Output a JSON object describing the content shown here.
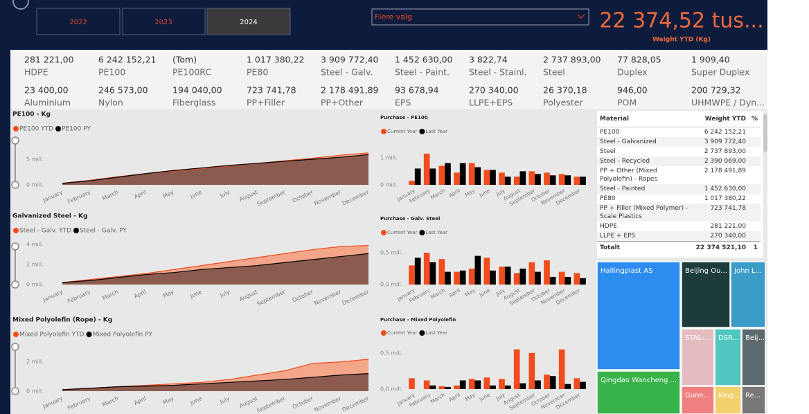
{
  "header": {
    "years": [
      "2022",
      "2023",
      "2024"
    ],
    "dropdown": "Flere valg",
    "kpi": {
      "value": "22 374,52 tus...",
      "label": "Weight YTD (Kg)"
    }
  },
  "cards": [
    {
      "value": "281 221,00",
      "label": "HDPE"
    },
    {
      "value": "6 242 152,21",
      "label": "PE100"
    },
    {
      "value": "(Tom)",
      "label": "PE100RC"
    },
    {
      "value": "1 017 380,22",
      "label": "PE80"
    },
    {
      "value": "3 909 772,40",
      "label": "Steel - Galv."
    },
    {
      "value": "1 452 630,00",
      "label": "Steel - Paint."
    },
    {
      "value": "3 822,74",
      "label": "Steel - Stainl."
    },
    {
      "value": "2 737 893,00",
      "label": "Steel"
    },
    {
      "value": "77 828,05",
      "label": "Duplex"
    },
    {
      "value": "1 909,40",
      "label": "Super Duplex"
    },
    {
      "value": "23 400,00",
      "label": "Aluminium"
    },
    {
      "value": "246 573,00",
      "label": "Nylon"
    },
    {
      "value": "194 040,00",
      "label": "Fiberglass"
    },
    {
      "value": "723 741,78",
      "label": "PP+Filler"
    },
    {
      "value": "2 178 491,89",
      "label": "PP+Other"
    },
    {
      "value": "93 678,94",
      "label": "EPS"
    },
    {
      "value": "270 340,00",
      "label": "LLPE+EPS"
    },
    {
      "value": "26 370,18",
      "label": "Polyester"
    },
    {
      "value": "946,00",
      "label": "POM"
    },
    {
      "value": "200 729,32",
      "label": "UHMWPE / Dyn..."
    }
  ],
  "chart_data": [
    {
      "type": "area",
      "title": "PE100 - Kg",
      "categories": [
        "January",
        "February",
        "March",
        "April",
        "May",
        "June",
        "July",
        "August",
        "September",
        "October",
        "November",
        "December"
      ],
      "series": [
        {
          "name": "PE100 YTD",
          "color": "#f24c1c",
          "values": [
            0.3,
            0.9,
            1.6,
            2.2,
            2.7,
            3.2,
            3.7,
            4.2,
            4.7,
            5.2,
            5.8,
            6.24
          ]
        },
        {
          "name": "PE100 PY",
          "color": "#000000",
          "values": [
            0.3,
            0.8,
            1.5,
            2.2,
            2.8,
            3.3,
            3.8,
            4.2,
            4.6,
            5.0,
            5.4,
            5.9
          ]
        }
      ],
      "ylim": [
        0,
        10
      ],
      "yticks": [
        {
          "value": 0,
          "label": "0 mill."
        },
        {
          "value": 5,
          "label": "5 mill."
        }
      ]
    },
    {
      "type": "bar",
      "title": "Purchase - PE100",
      "categories": [
        "January",
        "February",
        "March",
        "April",
        "May",
        "June",
        "July",
        "August",
        "September",
        "October",
        "November",
        "December"
      ],
      "series": [
        {
          "name": "Current Year",
          "color": "#f24c1c",
          "values": [
            0.15,
            1.15,
            0.7,
            0.45,
            0.8,
            0.55,
            0.45,
            0.3,
            0.5,
            0.45,
            0.4,
            0.3
          ]
        },
        {
          "name": "Last Year",
          "color": "#000000",
          "values": [
            0.6,
            0.6,
            0.8,
            0.8,
            0.65,
            0.55,
            0.3,
            0.5,
            0.4,
            0.35,
            0.35,
            0.3
          ]
        }
      ],
      "ylim": [
        0,
        1.3
      ],
      "yticks": [
        {
          "value": 0,
          "label": "0 mill."
        },
        {
          "value": 1,
          "label": "1 mill."
        }
      ]
    },
    {
      "type": "area",
      "title": "Galvanized Steel - Kg",
      "categories": [
        "January",
        "February",
        "March",
        "April",
        "May",
        "June",
        "July",
        "August",
        "September",
        "October",
        "November",
        "December"
      ],
      "series": [
        {
          "name": "Steel - Galv. YTD",
          "color": "#f24c1c",
          "values": [
            0.2,
            0.5,
            0.8,
            1.1,
            1.5,
            1.9,
            2.3,
            2.7,
            3.1,
            3.5,
            3.8,
            3.91
          ]
        },
        {
          "name": "Steel - Galv. PY",
          "color": "#000000",
          "values": [
            0.2,
            0.4,
            0.7,
            1.0,
            1.2,
            1.5,
            1.7,
            1.9,
            2.2,
            2.5,
            2.8,
            3.1
          ]
        }
      ],
      "ylim": [
        0,
        4.5
      ],
      "yticks": [
        {
          "value": 0,
          "label": "0 mill."
        },
        {
          "value": 2,
          "label": "2 mill."
        },
        {
          "value": 4,
          "label": "4 mill."
        }
      ]
    },
    {
      "type": "bar",
      "title": "Purchase - Galv. Steel",
      "categories": [
        "January",
        "February",
        "March",
        "April",
        "May",
        "June",
        "July",
        "August",
        "September",
        "October",
        "November",
        "December"
      ],
      "series": [
        {
          "name": "Current Year",
          "color": "#f24c1c",
          "values": [
            0.3,
            0.5,
            0.4,
            0.2,
            0.25,
            0.42,
            0.28,
            0.18,
            0.35,
            0.38,
            0.2,
            0.18
          ]
        },
        {
          "name": "Last Year",
          "color": "#000000",
          "values": [
            0.42,
            0.35,
            0.2,
            0.22,
            0.45,
            0.22,
            0.28,
            0.25,
            0.2,
            0.12,
            0.12,
            0.1
          ]
        }
      ],
      "ylim": [
        0,
        0.75
      ],
      "yticks": [
        {
          "value": 0,
          "label": "0,0 mill."
        },
        {
          "value": 0.5,
          "label": "0,5 mill."
        }
      ]
    },
    {
      "type": "area",
      "title": "Mixed Polyolefin (Rope) - Kg",
      "categories": [
        "January",
        "February",
        "March",
        "April",
        "May",
        "June",
        "July",
        "August",
        "September",
        "October",
        "November",
        "December"
      ],
      "series": [
        {
          "name": "Mixed Polyolefin YTD",
          "color": "#f24c1c",
          "values": [
            0.1,
            0.2,
            0.3,
            0.4,
            0.5,
            0.6,
            0.8,
            1.1,
            1.4,
            1.9,
            2.0,
            2.18
          ]
        },
        {
          "name": "Mixed Polyolefin  PY",
          "color": "#000000",
          "values": [
            0.1,
            0.2,
            0.3,
            0.35,
            0.4,
            0.5,
            0.6,
            0.7,
            0.8,
            0.95,
            1.1,
            1.2
          ]
        }
      ],
      "ylim": [
        0,
        3.5
      ],
      "yticks": [
        {
          "value": 0,
          "label": "0 mill."
        },
        {
          "value": 2,
          "label": "2 mill."
        }
      ]
    },
    {
      "type": "bar",
      "title": "Purchase - Mixed Polyolefin",
      "categories": [
        "January",
        "February",
        "March",
        "April",
        "May",
        "June",
        "July",
        "August",
        "September",
        "October",
        "November",
        "December"
      ],
      "series": [
        {
          "name": "Current Year",
          "color": "#f24c1c",
          "values": [
            0.15,
            0.12,
            0.04,
            0.05,
            0.14,
            0.16,
            0.14,
            0.55,
            0.5,
            0.2,
            0.55,
            0.15
          ]
        },
        {
          "name": "Last Year",
          "color": "#000000",
          "values": [
            0,
            0.05,
            0.03,
            0.12,
            0.12,
            0.05,
            0.05,
            0.08,
            0.12,
            0.18,
            0.07,
            0.1
          ]
        }
      ],
      "ylim": [
        0,
        0.7
      ],
      "yticks": [
        {
          "value": 0,
          "label": "0,0 mill."
        },
        {
          "value": 0.5,
          "label": "0,5 mill."
        }
      ]
    }
  ],
  "table": {
    "columns": [
      "Material",
      "Weight YTD",
      "%"
    ],
    "rows": [
      [
        "PE100",
        "6 242 152,21"
      ],
      [
        "Steel - Galvanized",
        "3 909 772,40"
      ],
      [
        "Steel",
        "2 737 893,00"
      ],
      [
        "Steel - Recycled",
        "2 390 069,00"
      ],
      [
        "PP + Other (Mixed Polyolefin) - Ropes",
        "2 178 491,89"
      ],
      [
        "Steel - Painted",
        "1 452 630,00"
      ],
      [
        "PE80",
        "1 017 380,22"
      ],
      [
        "PP + Filler (Mixed Polymer) - Scale Plastics",
        "723 741,78"
      ],
      [
        "HDPE",
        "281 221,00"
      ],
      [
        "LLPE + EPS",
        "270 340,00"
      ]
    ],
    "total": [
      "Totalt",
      "22 374 521,10",
      "1"
    ]
  },
  "treemap": {
    "labels": [
      "Hallingplast AS",
      "Qingdao Wancheng ...",
      "Beijing Ou...",
      "John L...",
      "STAL-...",
      "DSR...",
      "Beij...",
      "Gunn...",
      "King...",
      "Re..."
    ]
  }
}
